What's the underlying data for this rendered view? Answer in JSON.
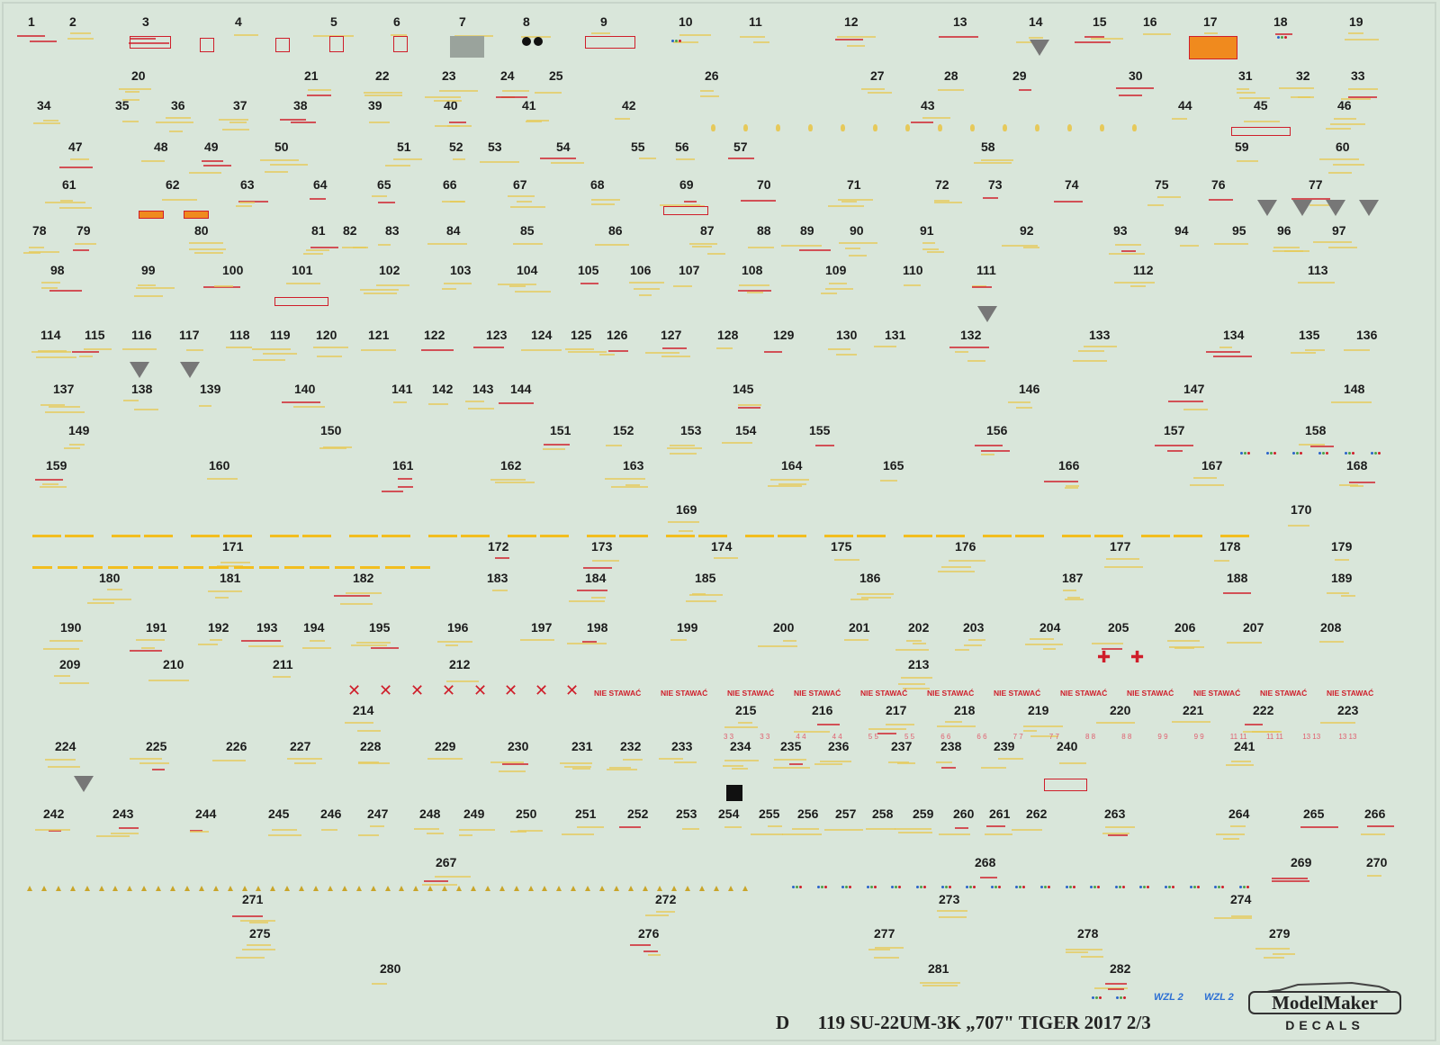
{
  "sheet": {
    "footer_letter": "D",
    "footer_title": "119 SU-22UM-3K „707\" TIGER 2017 2/3",
    "brand_line1": "ModelMaker",
    "brand_line2": "DECALS",
    "operator_logo": "WZL 2",
    "no_step_label": "NIE STAWAĆ",
    "colors": {
      "background": "#d9e6da",
      "stencil_yellow": "#e6c95a",
      "stripe_yellow": "#f2be1f",
      "stencil_red": "#cf1e2a",
      "label_orange": "#f08a1e",
      "number_black": "#1c1c1c",
      "logo_blue": "#2c6fd4"
    }
  },
  "rows": [
    {
      "y": 24,
      "items": [
        [
          40,
          "1"
        ],
        [
          86,
          "2"
        ],
        [
          167,
          "3"
        ],
        [
          270,
          "4"
        ],
        [
          376,
          "5"
        ],
        [
          446,
          "6"
        ],
        [
          519,
          "7"
        ],
        [
          590,
          "8"
        ],
        [
          676,
          "9"
        ],
        [
          763,
          "10"
        ],
        [
          841,
          "11"
        ],
        [
          947,
          "12"
        ],
        [
          1068,
          "13"
        ],
        [
          1152,
          "14"
        ],
        [
          1223,
          "15"
        ],
        [
          1279,
          "16"
        ],
        [
          1346,
          "17"
        ],
        [
          1424,
          "18"
        ],
        [
          1508,
          "19"
        ]
      ]
    },
    {
      "y": 84,
      "items": [
        [
          155,
          "20"
        ],
        [
          347,
          "21"
        ],
        [
          426,
          "22"
        ],
        [
          500,
          "23"
        ],
        [
          565,
          "24"
        ],
        [
          619,
          "25"
        ],
        [
          792,
          "26"
        ],
        [
          976,
          "27"
        ],
        [
          1058,
          "28"
        ],
        [
          1134,
          "29"
        ],
        [
          1263,
          "30"
        ],
        [
          1385,
          "31"
        ],
        [
          1449,
          "32"
        ],
        [
          1510,
          "33"
        ]
      ]
    },
    {
      "y": 117,
      "items": [
        [
          50,
          "34"
        ],
        [
          137,
          "35"
        ],
        [
          199,
          "36"
        ],
        [
          268,
          "37"
        ],
        [
          335,
          "38"
        ],
        [
          418,
          "39"
        ],
        [
          502,
          "40"
        ],
        [
          589,
          "41"
        ],
        [
          700,
          "42"
        ],
        [
          1032,
          "43"
        ],
        [
          1318,
          "44"
        ],
        [
          1402,
          "45"
        ],
        [
          1495,
          "46"
        ]
      ]
    },
    {
      "y": 163,
      "items": [
        [
          85,
          "47"
        ],
        [
          180,
          "48"
        ],
        [
          236,
          "49"
        ],
        [
          314,
          "50"
        ],
        [
          450,
          "51"
        ],
        [
          508,
          "52"
        ],
        [
          551,
          "53"
        ],
        [
          627,
          "54"
        ],
        [
          710,
          "55"
        ],
        [
          759,
          "56"
        ],
        [
          824,
          "57"
        ],
        [
          1099,
          "58"
        ],
        [
          1381,
          "59"
        ],
        [
          1493,
          "60"
        ]
      ]
    },
    {
      "y": 205,
      "items": [
        [
          78,
          "61"
        ],
        [
          193,
          "62"
        ],
        [
          276,
          "63"
        ],
        [
          357,
          "64"
        ],
        [
          428,
          "65"
        ],
        [
          501,
          "66"
        ],
        [
          579,
          "67"
        ],
        [
          665,
          "68"
        ],
        [
          764,
          "69"
        ],
        [
          850,
          "70"
        ],
        [
          950,
          "71"
        ],
        [
          1048,
          "72"
        ],
        [
          1107,
          "73"
        ],
        [
          1192,
          "74"
        ],
        [
          1292,
          "75"
        ],
        [
          1355,
          "76"
        ],
        [
          1463,
          "77"
        ]
      ]
    },
    {
      "y": 256,
      "items": [
        [
          45,
          "78"
        ],
        [
          94,
          "79"
        ],
        [
          225,
          "80"
        ],
        [
          355,
          "81"
        ],
        [
          390,
          "82"
        ],
        [
          437,
          "83"
        ],
        [
          505,
          "84"
        ],
        [
          587,
          "85"
        ],
        [
          685,
          "86"
        ],
        [
          787,
          "87"
        ],
        [
          850,
          "88"
        ],
        [
          898,
          "89"
        ],
        [
          953,
          "90"
        ],
        [
          1031,
          "91"
        ],
        [
          1142,
          "92"
        ],
        [
          1246,
          "93"
        ],
        [
          1314,
          "94"
        ],
        [
          1378,
          "95"
        ],
        [
          1428,
          "96"
        ],
        [
          1489,
          "97"
        ]
      ]
    },
    {
      "y": 300,
      "items": [
        [
          65,
          "98"
        ],
        [
          166,
          "99"
        ],
        [
          256,
          "100"
        ],
        [
          333,
          "101"
        ],
        [
          430,
          "102"
        ],
        [
          509,
          "103"
        ],
        [
          583,
          "104"
        ],
        [
          651,
          "105"
        ],
        [
          709,
          "106"
        ],
        [
          763,
          "107"
        ],
        [
          833,
          "108"
        ],
        [
          926,
          "109"
        ],
        [
          1012,
          "110"
        ],
        [
          1094,
          "111"
        ],
        [
          1268,
          "112"
        ],
        [
          1462,
          "113"
        ]
      ]
    },
    {
      "y": 372,
      "items": [
        [
          54,
          "114"
        ],
        [
          103,
          "115"
        ],
        [
          155,
          "116"
        ],
        [
          208,
          "117"
        ],
        [
          264,
          "118"
        ],
        [
          309,
          "119"
        ],
        [
          360,
          "120"
        ],
        [
          418,
          "121"
        ],
        [
          480,
          "122"
        ],
        [
          549,
          "123"
        ],
        [
          599,
          "124"
        ],
        [
          643,
          "125"
        ],
        [
          683,
          "126"
        ],
        [
          743,
          "127"
        ],
        [
          806,
          "128"
        ],
        [
          868,
          "129"
        ],
        [
          938,
          "130"
        ],
        [
          992,
          "131"
        ],
        [
          1076,
          "132"
        ],
        [
          1219,
          "133"
        ],
        [
          1368,
          "134"
        ],
        [
          1452,
          "135"
        ],
        [
          1516,
          "136"
        ]
      ]
    },
    {
      "y": 432,
      "items": [
        [
          68,
          "137"
        ],
        [
          155,
          "138"
        ],
        [
          231,
          "139"
        ],
        [
          336,
          "140"
        ],
        [
          444,
          "141"
        ],
        [
          489,
          "142"
        ],
        [
          534,
          "143"
        ],
        [
          576,
          "144"
        ],
        [
          823,
          "145"
        ],
        [
          1141,
          "146"
        ],
        [
          1324,
          "147"
        ],
        [
          1502,
          "148"
        ]
      ]
    },
    {
      "y": 478,
      "items": [
        [
          85,
          "149"
        ],
        [
          365,
          "150"
        ],
        [
          620,
          "151"
        ],
        [
          690,
          "152"
        ],
        [
          765,
          "153"
        ],
        [
          826,
          "154"
        ],
        [
          908,
          "155"
        ],
        [
          1105,
          "156"
        ],
        [
          1302,
          "157"
        ],
        [
          1459,
          "158"
        ]
      ]
    },
    {
      "y": 517,
      "items": [
        [
          60,
          "159"
        ],
        [
          241,
          "160"
        ],
        [
          445,
          "161"
        ],
        [
          565,
          "162"
        ],
        [
          701,
          "163"
        ],
        [
          877,
          "164"
        ],
        [
          990,
          "165"
        ],
        [
          1185,
          "166"
        ],
        [
          1344,
          "167"
        ],
        [
          1505,
          "168"
        ]
      ]
    },
    {
      "y": 566,
      "items": [
        [
          760,
          "169"
        ],
        [
          1443,
          "170"
        ]
      ]
    },
    {
      "y": 607,
      "items": [
        [
          256,
          "171"
        ],
        [
          551,
          "172"
        ],
        [
          666,
          "173"
        ],
        [
          799,
          "174"
        ],
        [
          932,
          "175"
        ],
        [
          1070,
          "176"
        ],
        [
          1242,
          "177"
        ],
        [
          1364,
          "178"
        ],
        [
          1488,
          "179"
        ]
      ]
    },
    {
      "y": 642,
      "items": [
        [
          119,
          "180"
        ],
        [
          253,
          "181"
        ],
        [
          401,
          "182"
        ],
        [
          550,
          "183"
        ],
        [
          659,
          "184"
        ],
        [
          781,
          "185"
        ],
        [
          964,
          "186"
        ],
        [
          1189,
          "187"
        ],
        [
          1372,
          "188"
        ],
        [
          1488,
          "189"
        ]
      ]
    },
    {
      "y": 697,
      "items": [
        [
          76,
          "190"
        ],
        [
          171,
          "191"
        ],
        [
          240,
          "192"
        ],
        [
          294,
          "193"
        ],
        [
          346,
          "194"
        ],
        [
          419,
          "195"
        ],
        [
          506,
          "196"
        ],
        [
          599,
          "197"
        ],
        [
          661,
          "198"
        ],
        [
          761,
          "199"
        ],
        [
          868,
          "200"
        ],
        [
          952,
          "201"
        ],
        [
          1018,
          "202"
        ],
        [
          1079,
          "203"
        ],
        [
          1164,
          "204"
        ],
        [
          1240,
          "205"
        ],
        [
          1314,
          "206"
        ],
        [
          1390,
          "207"
        ],
        [
          1476,
          "208"
        ]
      ]
    },
    {
      "y": 738,
      "items": [
        [
          75,
          "209"
        ],
        [
          190,
          "210"
        ],
        [
          312,
          "211"
        ],
        [
          508,
          "212"
        ],
        [
          1018,
          "213"
        ]
      ]
    },
    {
      "y": 789,
      "items": [
        [
          401,
          "214"
        ],
        [
          826,
          "215"
        ],
        [
          911,
          "216"
        ],
        [
          993,
          "217"
        ],
        [
          1069,
          "218"
        ],
        [
          1151,
          "219"
        ],
        [
          1242,
          "220"
        ],
        [
          1323,
          "221"
        ],
        [
          1401,
          "222"
        ],
        [
          1495,
          "223"
        ]
      ]
    },
    {
      "y": 829,
      "items": [
        [
          70,
          "224"
        ],
        [
          171,
          "225"
        ],
        [
          260,
          "226"
        ],
        [
          331,
          "227"
        ],
        [
          409,
          "228"
        ],
        [
          492,
          "229"
        ],
        [
          573,
          "230"
        ],
        [
          644,
          "231"
        ],
        [
          698,
          "232"
        ],
        [
          755,
          "233"
        ],
        [
          820,
          "234"
        ],
        [
          876,
          "235"
        ],
        [
          929,
          "236"
        ],
        [
          999,
          "237"
        ],
        [
          1054,
          "238"
        ],
        [
          1113,
          "239"
        ],
        [
          1183,
          "240"
        ],
        [
          1380,
          "241"
        ]
      ]
    },
    {
      "y": 904,
      "items": [
        [
          57,
          "242"
        ],
        [
          134,
          "243"
        ],
        [
          226,
          "244"
        ],
        [
          307,
          "245"
        ],
        [
          365,
          "246"
        ],
        [
          417,
          "247"
        ],
        [
          475,
          "248"
        ],
        [
          524,
          "249"
        ],
        [
          582,
          "250"
        ],
        [
          648,
          "251"
        ],
        [
          706,
          "252"
        ],
        [
          760,
          "253"
        ],
        [
          807,
          "254"
        ],
        [
          852,
          "255"
        ],
        [
          895,
          "256"
        ],
        [
          937,
          "257"
        ],
        [
          978,
          "258"
        ],
        [
          1023,
          "259"
        ],
        [
          1068,
          "260"
        ],
        [
          1108,
          "261"
        ],
        [
          1149,
          "262"
        ],
        [
          1236,
          "263"
        ],
        [
          1374,
          "264"
        ],
        [
          1457,
          "265"
        ],
        [
          1525,
          "266"
        ]
      ]
    },
    {
      "y": 958,
      "items": [
        [
          493,
          "267"
        ],
        [
          1092,
          "268"
        ],
        [
          1443,
          "269"
        ],
        [
          1527,
          "270"
        ]
      ]
    },
    {
      "y": 999,
      "items": [
        [
          278,
          "271"
        ],
        [
          737,
          "272"
        ],
        [
          1052,
          "273"
        ],
        [
          1376,
          "274"
        ]
      ]
    },
    {
      "y": 1037,
      "items": [
        [
          286,
          "275"
        ],
        [
          718,
          "276"
        ],
        [
          980,
          "277"
        ],
        [
          1206,
          "278"
        ],
        [
          1419,
          "279"
        ]
      ]
    },
    {
      "y": 1076,
      "items": [
        [
          431,
          "280"
        ],
        [
          1040,
          "281"
        ],
        [
          1242,
          "282"
        ]
      ]
    }
  ],
  "numbered_pairs": [
    "3 3",
    "3 3",
    "4 4",
    "4 4",
    "5 5",
    "5 5",
    "6 6",
    "6 6",
    "7 7",
    "7 7",
    "8 8",
    "8 8",
    "9 9",
    "9 9",
    "11 11",
    "11 11",
    "13 13",
    "13 13"
  ]
}
